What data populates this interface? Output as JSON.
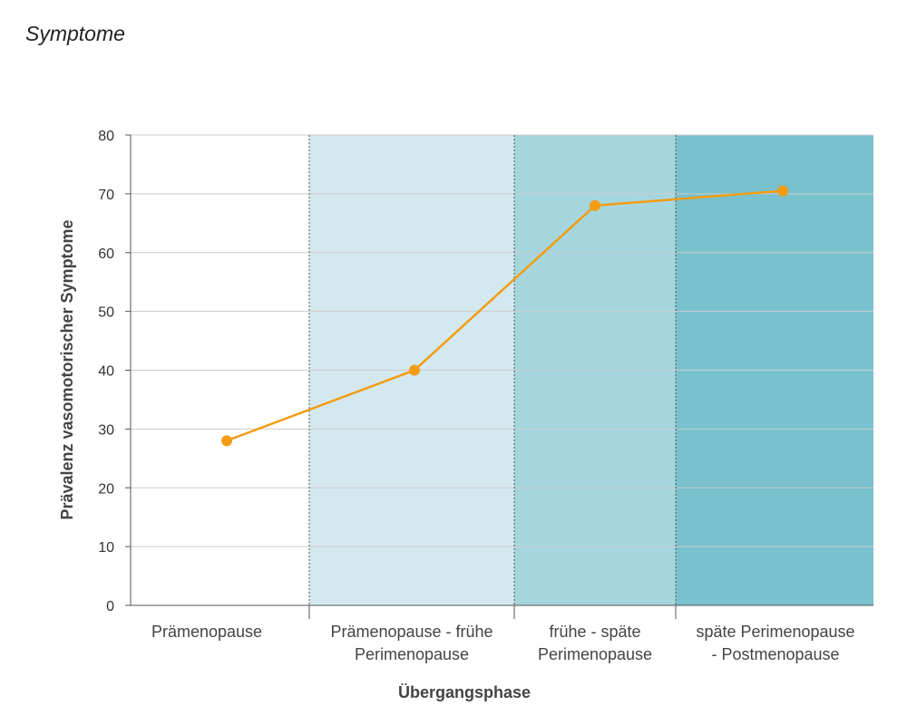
{
  "chart_data": {
    "type": "line",
    "title": "Symptome",
    "xlabel": "Übergangsphase",
    "ylabel": "Prävalenz vasomotorischer Symptome",
    "ylim": [
      0,
      80
    ],
    "yticks": [
      0,
      10,
      20,
      30,
      40,
      50,
      60,
      70,
      80
    ],
    "grid": true,
    "categories": [
      [
        "Prämenopause"
      ],
      [
        "Prämenopause - frühe",
        "Perimenopause"
      ],
      [
        "frühe - späte",
        "Perimenopause"
      ],
      [
        "späte Perimenopause",
        "- Postmenopause"
      ]
    ],
    "series": [
      {
        "values": [
          28,
          40,
          68,
          70.5
        ]
      }
    ],
    "colors": {
      "line": "#f39c12",
      "bands": [
        "#ffffff",
        "#d4e9ef",
        "#a6d6dd",
        "#78c1cd"
      ],
      "grid": "#cccccc",
      "axis": "#555555"
    }
  }
}
